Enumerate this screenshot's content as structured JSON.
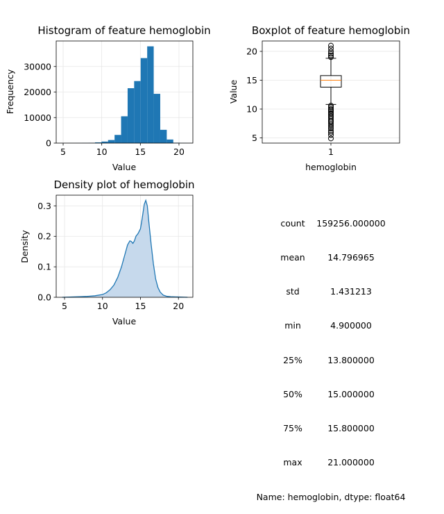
{
  "chart_data": [
    {
      "type": "bar",
      "title": "Histogram of feature hemoglobin",
      "xlabel": "Value",
      "ylabel": "Frequency",
      "xlim": [
        4.1,
        21.8
      ],
      "ylim": [
        0,
        40000
      ],
      "xticks": [
        5,
        10,
        15,
        20
      ],
      "yticks": [
        0,
        10000,
        20000,
        30000
      ],
      "grid": true,
      "color": "#1f77b4",
      "bin_edges": [
        4.9,
        5.745,
        6.59,
        7.435,
        8.28,
        9.125,
        9.97,
        10.815,
        11.66,
        12.505,
        13.35,
        14.195,
        15.04,
        15.885,
        16.73,
        17.575,
        18.42,
        19.265,
        20.11,
        20.955,
        21.8
      ],
      "values": [
        10,
        20,
        30,
        60,
        100,
        280,
        600,
        1200,
        3200,
        10500,
        21500,
        24300,
        33300,
        37900,
        19300,
        5200,
        1400,
        150,
        40,
        20
      ]
    },
    {
      "type": "box",
      "title": "Boxplot of feature hemoglobin",
      "xlabel": "hemoglobin",
      "ylabel": "Value",
      "ylim": [
        4.1,
        21.8
      ],
      "yticks": [
        5,
        10,
        15,
        20
      ],
      "xtick_label": "1",
      "grid": true,
      "whisker_low": 10.8,
      "q1": 13.8,
      "median": 15.0,
      "q3": 15.8,
      "whisker_high": 18.8,
      "outliers": [
        4.9,
        5.5,
        5.9,
        6.2,
        6.6,
        6.9,
        7.2,
        7.5,
        7.8,
        8.0,
        8.3,
        8.6,
        8.8,
        9.1,
        9.3,
        9.6,
        9.8,
        10.0,
        10.3,
        10.6,
        19.0,
        19.3,
        19.6,
        20.0,
        20.5,
        21.0
      ],
      "median_color": "#ff7f0e"
    },
    {
      "type": "area",
      "title": "Density plot of hemoglobin",
      "xlabel": "Value",
      "ylabel": "Density",
      "xlim": [
        3.9,
        21.9
      ],
      "ylim": [
        0,
        0.335
      ],
      "xticks": [
        5,
        10,
        15,
        20
      ],
      "yticks": [
        0.0,
        0.1,
        0.2,
        0.3
      ],
      "grid": true,
      "line_color": "#1f77b4",
      "fill_color": "#c6d9ec",
      "x": [
        4.7,
        6.0,
        7.0,
        8.0,
        9.0,
        10.0,
        10.5,
        11.0,
        11.5,
        12.0,
        12.5,
        13.0,
        13.3,
        13.6,
        13.8,
        14.0,
        14.2,
        14.4,
        14.7,
        15.0,
        15.2,
        15.5,
        15.7,
        15.9,
        16.1,
        16.4,
        16.7,
        17.0,
        17.3,
        17.6,
        18.0,
        18.5,
        19.0,
        20.0,
        21.2
      ],
      "y": [
        0.0,
        0.001,
        0.002,
        0.003,
        0.005,
        0.009,
        0.015,
        0.025,
        0.04,
        0.065,
        0.1,
        0.145,
        0.172,
        0.185,
        0.183,
        0.177,
        0.185,
        0.2,
        0.21,
        0.225,
        0.255,
        0.305,
        0.318,
        0.3,
        0.248,
        0.175,
        0.11,
        0.06,
        0.032,
        0.017,
        0.007,
        0.003,
        0.002,
        0.001,
        0.0
      ]
    }
  ],
  "stats": {
    "rows": [
      {
        "key": "count",
        "value": "159256.000000"
      },
      {
        "key": "mean",
        "value": "14.796965"
      },
      {
        "key": "std",
        "value": "1.431213"
      },
      {
        "key": "min",
        "value": "4.900000"
      },
      {
        "key": "25%",
        "value": "13.800000"
      },
      {
        "key": "50%",
        "value": "15.000000"
      },
      {
        "key": "75%",
        "value": "15.800000"
      },
      {
        "key": "max",
        "value": "21.000000"
      }
    ],
    "footer": "Name: hemoglobin, dtype: float64"
  }
}
